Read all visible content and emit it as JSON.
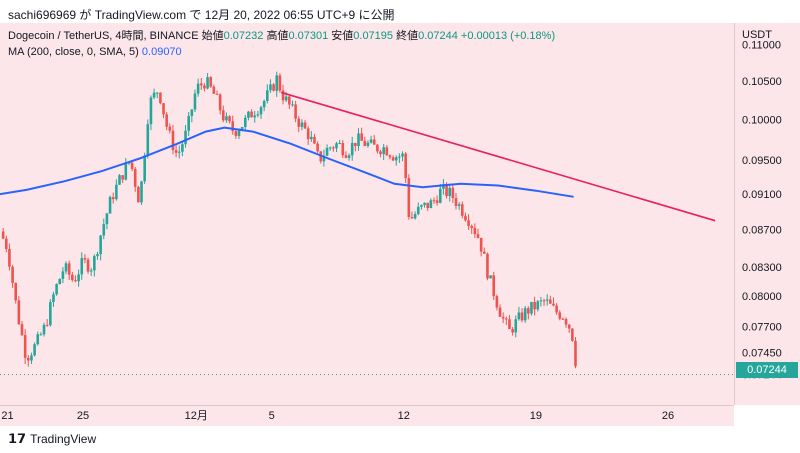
{
  "header": {
    "publisher": "sachi696969 が TradingView.com で 12月 20, 2022 06:55 UTC+9 に公開"
  },
  "legend": {
    "symbol": "Dogecoin / TetherUS, 4時間, BINANCE",
    "open_label": "始値",
    "open": "0.07232",
    "high_label": "高値",
    "high": "0.07301",
    "low_label": "安値",
    "low": "0.07195",
    "close_label": "終値",
    "close": "0.07244",
    "change": "+0.00013 (+0.18%)",
    "ma_label": "MA (200, close, 0, SMA, 5)",
    "ma_value": "0.09070"
  },
  "axis": {
    "currency": "USDT"
  },
  "last_price": "0.07244",
  "footer": {
    "brand": "TradingView"
  },
  "colors": {
    "up": "#26a69a",
    "down": "#ef5350",
    "ma": "#2962ff",
    "trend": "#e91e63",
    "background": "#fce6e9"
  },
  "chart_data": {
    "type": "candlestick",
    "title": "Dogecoin / TetherUS, 4時間, BINANCE",
    "ylabel": "USDT",
    "y_scale": "log",
    "ylim": [
      0.0697,
      0.113
    ],
    "y_ticks": [
      "0.11000",
      "0.10500",
      "0.10000",
      "0.09500",
      "0.09100",
      "0.08700",
      "0.08300",
      "0.08000",
      "0.07700",
      "0.07450",
      "0.07244"
    ],
    "x_ticks": [
      {
        "label": "21",
        "day": 21
      },
      {
        "label": "25",
        "day": 25
      },
      {
        "label": "12月",
        "day": 31
      },
      {
        "label": "5",
        "day": 35
      },
      {
        "label": "12",
        "day": 42
      },
      {
        "label": "19",
        "day": 49
      },
      {
        "label": "26",
        "day": 56
      }
    ],
    "x_range_days": [
      20.6,
      59.5
    ],
    "close_path": [
      {
        "day": 20.6,
        "p": 0.0868
      },
      {
        "day": 21.0,
        "p": 0.085
      },
      {
        "day": 21.5,
        "p": 0.0785
      },
      {
        "day": 22.0,
        "p": 0.074
      },
      {
        "day": 22.5,
        "p": 0.0752
      },
      {
        "day": 23.0,
        "p": 0.077
      },
      {
        "day": 23.5,
        "p": 0.0805
      },
      {
        "day": 24.0,
        "p": 0.083
      },
      {
        "day": 24.5,
        "p": 0.0815
      },
      {
        "day": 25.0,
        "p": 0.0835
      },
      {
        "day": 25.5,
        "p": 0.083
      },
      {
        "day": 26.0,
        "p": 0.087
      },
      {
        "day": 26.5,
        "p": 0.0905
      },
      {
        "day": 27.0,
        "p": 0.093
      },
      {
        "day": 27.5,
        "p": 0.095
      },
      {
        "day": 28.0,
        "p": 0.09
      },
      {
        "day": 28.5,
        "p": 0.102
      },
      {
        "day": 29.0,
        "p": 0.104
      },
      {
        "day": 29.5,
        "p": 0.0985
      },
      {
        "day": 30.0,
        "p": 0.0955
      },
      {
        "day": 30.5,
        "p": 0.0985
      },
      {
        "day": 31.0,
        "p": 0.104
      },
      {
        "day": 31.5,
        "p": 0.105
      },
      {
        "day": 32.0,
        "p": 0.103
      },
      {
        "day": 32.5,
        "p": 0.1
      },
      {
        "day": 33.0,
        "p": 0.0985
      },
      {
        "day": 33.5,
        "p": 0.0995
      },
      {
        "day": 34.0,
        "p": 0.101
      },
      {
        "day": 34.5,
        "p": 0.102
      },
      {
        "day": 35.0,
        "p": 0.104
      },
      {
        "day": 35.3,
        "p": 0.1055
      },
      {
        "day": 35.5,
        "p": 0.1035
      },
      {
        "day": 36.0,
        "p": 0.1015
      },
      {
        "day": 36.5,
        "p": 0.0995
      },
      {
        "day": 37.0,
        "p": 0.098
      },
      {
        "day": 37.5,
        "p": 0.095
      },
      {
        "day": 38.0,
        "p": 0.0965
      },
      {
        "day": 38.5,
        "p": 0.097
      },
      {
        "day": 39.0,
        "p": 0.096
      },
      {
        "day": 39.5,
        "p": 0.0975
      },
      {
        "day": 40.0,
        "p": 0.097
      },
      {
        "day": 40.5,
        "p": 0.0965
      },
      {
        "day": 41.0,
        "p": 0.0965
      },
      {
        "day": 41.5,
        "p": 0.0955
      },
      {
        "day": 42.0,
        "p": 0.0955
      },
      {
        "day": 42.3,
        "p": 0.088
      },
      {
        "day": 42.7,
        "p": 0.089
      },
      {
        "day": 43.0,
        "p": 0.0895
      },
      {
        "day": 43.5,
        "p": 0.09
      },
      {
        "day": 44.0,
        "p": 0.0915
      },
      {
        "day": 44.5,
        "p": 0.091
      },
      {
        "day": 45.0,
        "p": 0.0895
      },
      {
        "day": 45.5,
        "p": 0.088
      },
      {
        "day": 46.0,
        "p": 0.086
      },
      {
        "day": 46.5,
        "p": 0.082
      },
      {
        "day": 47.0,
        "p": 0.079
      },
      {
        "day": 47.3,
        "p": 0.0775
      },
      {
        "day": 47.6,
        "p": 0.0765
      },
      {
        "day": 48.0,
        "p": 0.0775
      },
      {
        "day": 48.5,
        "p": 0.0785
      },
      {
        "day": 49.0,
        "p": 0.079
      },
      {
        "day": 49.5,
        "p": 0.0795
      },
      {
        "day": 50.0,
        "p": 0.0785
      },
      {
        "day": 50.5,
        "p": 0.078
      },
      {
        "day": 50.9,
        "p": 0.0765
      },
      {
        "day": 51.2,
        "p": 0.0724
      }
    ],
    "ma200": [
      {
        "day": 20.6,
        "p": 0.091
      },
      {
        "day": 22.0,
        "p": 0.0915
      },
      {
        "day": 24.0,
        "p": 0.0925
      },
      {
        "day": 26.0,
        "p": 0.0937
      },
      {
        "day": 28.0,
        "p": 0.0952
      },
      {
        "day": 30.0,
        "p": 0.097
      },
      {
        "day": 31.5,
        "p": 0.0985
      },
      {
        "day": 32.5,
        "p": 0.099
      },
      {
        "day": 34.0,
        "p": 0.0985
      },
      {
        "day": 36.0,
        "p": 0.097
      },
      {
        "day": 38.0,
        "p": 0.0952
      },
      {
        "day": 40.0,
        "p": 0.0935
      },
      {
        "day": 41.5,
        "p": 0.0922
      },
      {
        "day": 43.0,
        "p": 0.0918
      },
      {
        "day": 45.0,
        "p": 0.0922
      },
      {
        "day": 47.0,
        "p": 0.092
      },
      {
        "day": 49.0,
        "p": 0.0914
      },
      {
        "day": 51.0,
        "p": 0.0907
      }
    ],
    "trendline": {
      "start": {
        "day": 35.5,
        "p": 0.1035
      },
      "end": {
        "day": 58.5,
        "p": 0.088
      }
    }
  }
}
